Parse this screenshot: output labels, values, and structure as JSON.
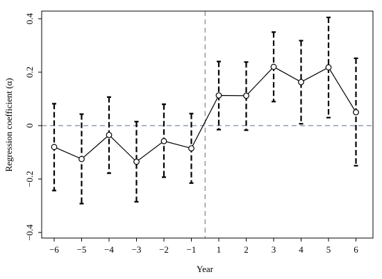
{
  "chart_data": {
    "type": "line",
    "title": "",
    "xlabel": "Year",
    "ylabel": "Regression coefficient (α)",
    "ylim": [
      -0.43,
      0.42
    ],
    "yticks": [
      -0.4,
      -0.2,
      0,
      0.2,
      0.4
    ],
    "ytick_labels": [
      "−0.4",
      "−0.2",
      "0",
      "0.2",
      "0.4"
    ],
    "xticks": [
      -6,
      -5,
      -4,
      -3,
      -2,
      -1,
      1,
      2,
      3,
      4,
      5,
      6
    ],
    "xtick_labels": [
      "−6",
      "−5",
      "−4",
      "−3",
      "−2",
      "−1",
      "1",
      "2",
      "3",
      "4",
      "5",
      "6"
    ],
    "grid": false,
    "reference_lines": {
      "horizontal_y": 0,
      "vertical_between": [
        -1,
        1
      ]
    },
    "series": [
      {
        "x": [
          -6,
          -5,
          -4,
          -3,
          -2,
          -1,
          1,
          2,
          3,
          4,
          5,
          6
        ],
        "y": [
          -0.08,
          -0.125,
          -0.035,
          -0.135,
          -0.058,
          -0.085,
          0.113,
          0.112,
          0.22,
          0.163,
          0.218,
          0.05
        ],
        "ci_low": [
          -0.243,
          -0.292,
          -0.178,
          -0.285,
          -0.193,
          -0.215,
          -0.015,
          -0.017,
          0.09,
          0.007,
          0.03,
          -0.15
        ],
        "ci_high": [
          0.082,
          0.043,
          0.107,
          0.015,
          0.08,
          0.045,
          0.24,
          0.238,
          0.35,
          0.318,
          0.405,
          0.252
        ]
      }
    ],
    "colors": {
      "line": "#000000",
      "reference": "#5a6a8a",
      "frame": "#000000"
    }
  }
}
